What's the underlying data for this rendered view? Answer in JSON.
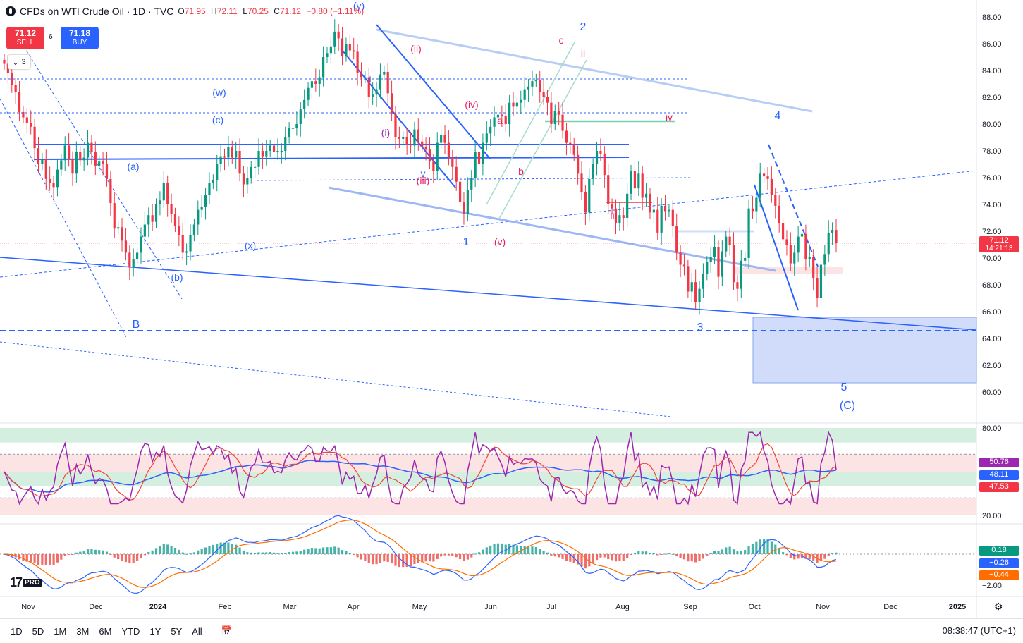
{
  "header": {
    "title": "CFDs on WTI Crude Oil · 1D · TVC",
    "ohlc": [
      {
        "label": "O",
        "value": "71.95"
      },
      {
        "label": "H",
        "value": "72.11"
      },
      {
        "label": "L",
        "value": "70.25"
      },
      {
        "label": "C",
        "value": "71.12"
      }
    ],
    "change": "−0.80 (−1.11%)"
  },
  "trade": {
    "sell_price": "71.12",
    "sell_label": "SELL",
    "buy_price": "71.18",
    "buy_label": "BUY",
    "spread": "6"
  },
  "collapse_count": "3",
  "colors": {
    "up": "#089981",
    "down": "#f23645",
    "wave_blue": "#2962ff",
    "wave_red": "#e91e63",
    "rsi": "#9c27b0",
    "rsi_ma": "#f44336",
    "rsi_long": "#2962ff",
    "macd": "#2962ff",
    "signal": "#ff6d00"
  },
  "chart_data": {
    "type": "candlestick",
    "symbol": "WTI Crude Oil",
    "interval": "1D",
    "x_labels": [
      "Nov",
      "Dec",
      "2024",
      "Feb",
      "Mar",
      "Apr",
      "May",
      "Jun",
      "Jul",
      "Aug",
      "Sep",
      "Oct",
      "Nov",
      "Dec",
      "2025"
    ],
    "y_ticks": [
      "88.00",
      "86.00",
      "84.00",
      "82.00",
      "80.00",
      "78.00",
      "76.00",
      "74.00",
      "72.00",
      "70.00",
      "68.00",
      "66.00",
      "64.00",
      "62.00",
      "60.00"
    ],
    "ylim": [
      59,
      89
    ],
    "closes": [
      84.5,
      83.8,
      82.9,
      82.4,
      80.9,
      80.5,
      80.1,
      79.8,
      78.2,
      77.0,
      77.4,
      75.9,
      75.6,
      75.3,
      76.6,
      77.3,
      78.4,
      77.4,
      76.3,
      77.9,
      77.3,
      77.5,
      78.6,
      77.9,
      76.9,
      77.2,
      77.0,
      75.9,
      74.1,
      72.2,
      72.3,
      71.3,
      70.4,
      69.3,
      69.9,
      70.4,
      71.6,
      72.5,
      73.2,
      72.7,
      74.0,
      74.3,
      75.6,
      74.0,
      73.3,
      72.4,
      71.7,
      70.4,
      70.5,
      71.7,
      72.5,
      73.6,
      73.8,
      74.7,
      75.6,
      75.8,
      77.0,
      77.6,
      77.5,
      78.3,
      77.5,
      78.0,
      76.3,
      75.5,
      76.0,
      76.8,
      76.8,
      78.0,
      77.6,
      78.0,
      78.4,
      77.9,
      78.0,
      78.0,
      79.0,
      79.7,
      79.7,
      80.0,
      81.1,
      81.8,
      82.7,
      83.2,
      83.0,
      83.5,
      85.0,
      85.3,
      85.8,
      86.9,
      86.4,
      85.1,
      86.0,
      85.5,
      85.4,
      83.8,
      83.5,
      83.5,
      82.0,
      82.2,
      82.6,
      83.7,
      83.9,
      82.3,
      80.8,
      79.0,
      78.9,
      79.0,
      78.5,
      78.4,
      79.6,
      78.7,
      78.3,
      78.1,
      77.2,
      76.5,
      78.6,
      79.2,
      78.6,
      77.5,
      76.8,
      75.7,
      74.2,
      73.3,
      75.1,
      76.0,
      77.9,
      77.0,
      78.6,
      79.3,
      79.8,
      80.5,
      80.7,
      80.6,
      80.0,
      81.6,
      81.3,
      81.6,
      81.8,
      82.6,
      82.8,
      83.2,
      83.3,
      82.4,
      82.0,
      81.6,
      80.0,
      81.0,
      80.7,
      79.5,
      78.6,
      78.5,
      77.7,
      76.3,
      74.9,
      73.4,
      75.9,
      77.0,
      78.0,
      77.8,
      76.2,
      74.0,
      73.7,
      72.6,
      73.2,
      73.0,
      74.8,
      76.5,
      75.2,
      76.3,
      74.5,
      74.8,
      73.4,
      73.6,
      71.9,
      73.9,
      73.5,
      73.6,
      72.4,
      70.4,
      69.5,
      69.4,
      67.5,
      68.2,
      66.7,
      67.7,
      68.8,
      69.7,
      70.1,
      70.8,
      68.6,
      70.5,
      71.6,
      71.0,
      68.2,
      67.7,
      69.8,
      70.0,
      73.7,
      73.5,
      74.5,
      76.3,
      76.1,
      75.9,
      74.7,
      73.9,
      72.6,
      71.4,
      71.0,
      69.6,
      70.4,
      71.6,
      71.8,
      69.9,
      70.1,
      68.5,
      67.0,
      69.5,
      70.3,
      71.9,
      72.1,
      71.1
    ],
    "current_price": "71.12",
    "countdown": "14:21:13",
    "wave_labels": [
      "(w)",
      "(x)",
      "(y)",
      "(a)",
      "(b)",
      "(c)",
      "(i)",
      "(ii)",
      "(iii)",
      "(iv)",
      "(v)",
      "i",
      "ii",
      "iii",
      "iv",
      "v",
      "a",
      "b",
      "c",
      "1",
      "2",
      "3",
      "4",
      "5",
      "B",
      "(C)"
    ],
    "rsi": {
      "ticks": [
        "80.00",
        "20.00"
      ],
      "values": [
        "50.76",
        "48.11",
        "47.53"
      ]
    },
    "macd": {
      "ticks": [
        "−2.00"
      ],
      "values": [
        "0.18",
        "−0.26",
        "−0.44"
      ]
    }
  },
  "bottom": {
    "ranges": [
      "1D",
      "5D",
      "1M",
      "3M",
      "6M",
      "YTD",
      "1Y",
      "5Y",
      "All"
    ],
    "clock": "08:38:47 (UTC+1)"
  },
  "logo": "PRO"
}
